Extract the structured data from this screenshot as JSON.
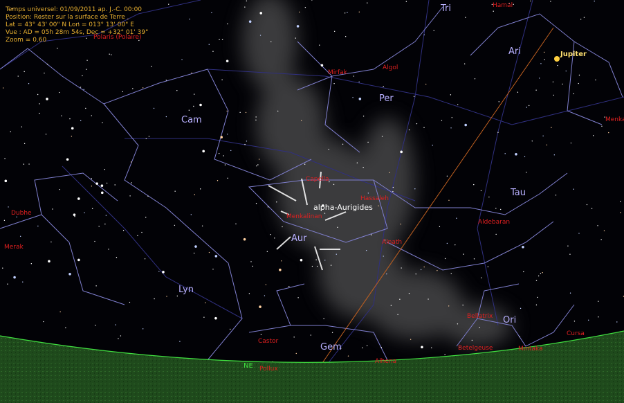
{
  "info": [
    "Temps universel: 01/09/2011 ap. J.-C. 00:00",
    "Position: Rester sur la surface de Terre",
    "Lat = 43° 43' 00\" N Lon = 013° 13' 00\" E",
    "Vue : AD = 05h 28m 54s, Dec = +32° 01' 39\"",
    "Zoom = 0.60"
  ],
  "constellations": [
    "Tri",
    "Ari",
    "Cam",
    "Per",
    "Tau",
    "Aur",
    "Lyn",
    "Gem",
    "Ori"
  ],
  "stars": [
    "Polaris (Polaire)",
    "Hamal",
    "Mirfak",
    "Algol",
    "Capella",
    "Hassaleh",
    "Menkalinan",
    "Alnath",
    "Aldebaran",
    "Dubhe",
    "Merak",
    "Menka",
    "Bellatrix",
    "Betelgeuse",
    "Mintaka",
    "Cursa",
    "Castor",
    "Alhena",
    "Pollux"
  ],
  "planets": [
    "Jupiter"
  ],
  "meteor_shower": "alpha-Aurigides",
  "cardinal": "NE"
}
